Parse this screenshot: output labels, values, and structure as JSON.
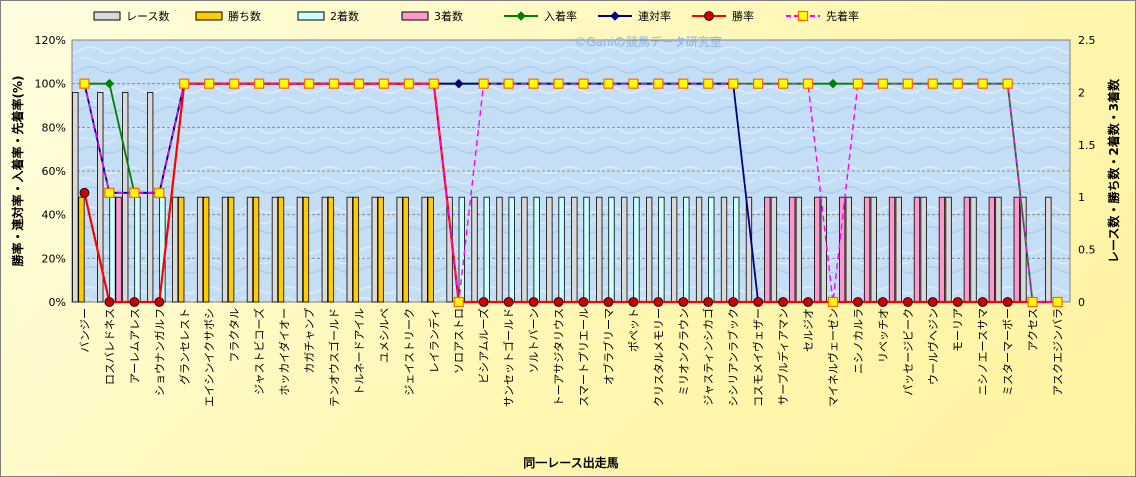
{
  "chart_data": {
    "type": "bar+line",
    "title": "",
    "watermark": "©Ganiの競馬データ研究室",
    "xlabel": "同一レース出走馬",
    "ylabel_left": "勝率・連対率・入着率・先着率(%)",
    "ylabel_right": "レース数・勝ち数・2着数・3着数",
    "ylim_left": [
      0,
      120
    ],
    "ylim_right": [
      0,
      2.5
    ],
    "yticks_left": [
      "0%",
      "20%",
      "40%",
      "60%",
      "80%",
      "100%",
      "120%"
    ],
    "yticks_right": [
      "0",
      "0.5",
      "1",
      "1.5",
      "2",
      "2.5"
    ],
    "grid": true,
    "legend_position": "top",
    "categories": [
      "バンジー",
      "ロスバレドネス",
      "アーレムアレス",
      "ショウナンガルフ",
      "グランセレスト",
      "エイシンイクサボシ",
      "フラクタル",
      "ジャストビコーズ",
      "ホッカイダイオー",
      "カガチャンプ",
      "テンオウスゴールド",
      "トルネードアイル",
      "ユメシルベ",
      "ジェイストリーク",
      "レイランディ",
      "ソロアストロ",
      "ビシアムルーズ",
      "サンセットゴールド",
      "ソルトバーン",
      "トーアサジタリウス",
      "スマートプリエール",
      "オブラブリーマ",
      "ポペット",
      "クリスタルメモリー",
      "ミリオンクラウン",
      "ジャスティンシカゴ",
      "シシリアンラブック",
      "コスモメイヴェザー",
      "サーブルディアマン",
      "セルジオ",
      "マイネルヴェーゼン",
      "ニシノカルラ",
      "リベッチオ",
      "パッセージビーク",
      "ウールヴヘジン",
      "モーリア",
      "ニシノエースサマ",
      "ミスターマーボー",
      "アクセス",
      "アスクエジンバラ"
    ],
    "series": [
      {
        "name": "レース数",
        "kind": "bar",
        "axis": "right",
        "color": "#d9d9d9",
        "values": [
          2,
          2,
          2,
          2,
          1,
          1,
          1,
          1,
          1,
          1,
          1,
          1,
          1,
          1,
          1,
          1,
          1,
          1,
          1,
          1,
          1,
          1,
          1,
          1,
          1,
          1,
          1,
          1,
          1,
          1,
          1,
          1,
          1,
          1,
          1,
          1,
          1,
          1,
          1,
          1
        ]
      },
      {
        "name": "勝ち数",
        "kind": "bar",
        "axis": "right",
        "color": "#ffcc00",
        "values": [
          1,
          0,
          0,
          0,
          1,
          1,
          1,
          1,
          1,
          1,
          1,
          1,
          1,
          1,
          1,
          0,
          0,
          0,
          0,
          0,
          0,
          0,
          0,
          0,
          0,
          0,
          0,
          0,
          0,
          0,
          0,
          0,
          0,
          0,
          0,
          0,
          0,
          0,
          0,
          0
        ]
      },
      {
        "name": "2着数",
        "kind": "bar",
        "axis": "right",
        "color": "#ccffff",
        "values": [
          0,
          1,
          1,
          1,
          0,
          0,
          0,
          0,
          0,
          0,
          0,
          0,
          0,
          0,
          0,
          1,
          1,
          1,
          1,
          1,
          1,
          1,
          1,
          1,
          1,
          1,
          1,
          0,
          0,
          0,
          0,
          0,
          0,
          0,
          0,
          0,
          0,
          0,
          0,
          0
        ]
      },
      {
        "name": "3着数",
        "kind": "bar",
        "axis": "right",
        "color": "#ff99cc",
        "values": [
          0,
          1,
          0,
          0,
          0,
          0,
          0,
          0,
          0,
          0,
          0,
          0,
          0,
          0,
          0,
          0,
          0,
          0,
          0,
          0,
          0,
          0,
          0,
          0,
          0,
          0,
          0,
          1,
          1,
          1,
          1,
          1,
          1,
          1,
          1,
          1,
          1,
          1,
          0,
          0
        ]
      },
      {
        "name": "入着率",
        "kind": "line",
        "axis": "left",
        "color": "#008000",
        "marker": "diamond",
        "values": [
          100,
          100,
          50,
          50,
          100,
          100,
          100,
          100,
          100,
          100,
          100,
          100,
          100,
          100,
          100,
          100,
          100,
          100,
          100,
          100,
          100,
          100,
          100,
          100,
          100,
          100,
          100,
          100,
          100,
          100,
          100,
          100,
          100,
          100,
          100,
          100,
          100,
          100,
          0,
          0
        ]
      },
      {
        "name": "連対率",
        "kind": "line",
        "axis": "left",
        "color": "#000080",
        "marker": "diamond",
        "values": [
          100,
          50,
          50,
          50,
          100,
          100,
          100,
          100,
          100,
          100,
          100,
          100,
          100,
          100,
          100,
          100,
          100,
          100,
          100,
          100,
          100,
          100,
          100,
          100,
          100,
          100,
          100,
          0,
          0,
          0,
          0,
          0,
          0,
          0,
          0,
          0,
          0,
          0,
          0,
          0
        ]
      },
      {
        "name": "勝率",
        "kind": "line",
        "axis": "left",
        "color": "#ff0000",
        "marker": "circle",
        "values": [
          50,
          0,
          0,
          0,
          100,
          100,
          100,
          100,
          100,
          100,
          100,
          100,
          100,
          100,
          100,
          0,
          0,
          0,
          0,
          0,
          0,
          0,
          0,
          0,
          0,
          0,
          0,
          0,
          0,
          0,
          0,
          0,
          0,
          0,
          0,
          0,
          0,
          0,
          0,
          0
        ]
      },
      {
        "name": "先着率",
        "kind": "line",
        "axis": "left",
        "color": "#ff00ff",
        "marker": "square",
        "dashed": true,
        "values": [
          100,
          50,
          50,
          50,
          100,
          100,
          100,
          100,
          100,
          100,
          100,
          100,
          100,
          100,
          100,
          0,
          100,
          100,
          100,
          100,
          100,
          100,
          100,
          100,
          100,
          100,
          100,
          100,
          100,
          100,
          0,
          100,
          100,
          100,
          100,
          100,
          100,
          100,
          0,
          0
        ]
      }
    ]
  }
}
